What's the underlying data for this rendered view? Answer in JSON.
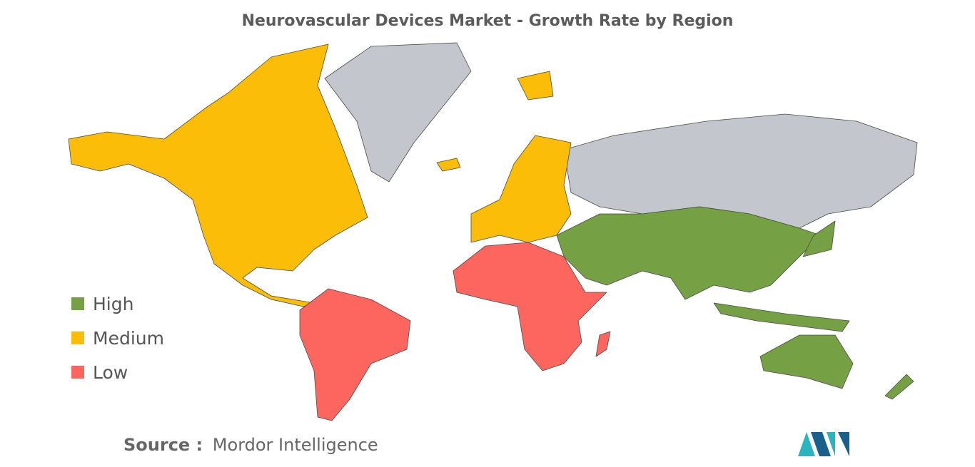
{
  "title": "Neurovascular Devices Market - Growth Rate by Region",
  "legend": [
    {
      "label": "High",
      "color": "#76a044"
    },
    {
      "label": "Medium",
      "color": "#fbbd08"
    },
    {
      "label": "Low",
      "color": "#fd665f"
    }
  ],
  "no_data_color": "#c3c6cc",
  "source": {
    "label": "Source :",
    "text": "Mordor Intelligence"
  }
}
